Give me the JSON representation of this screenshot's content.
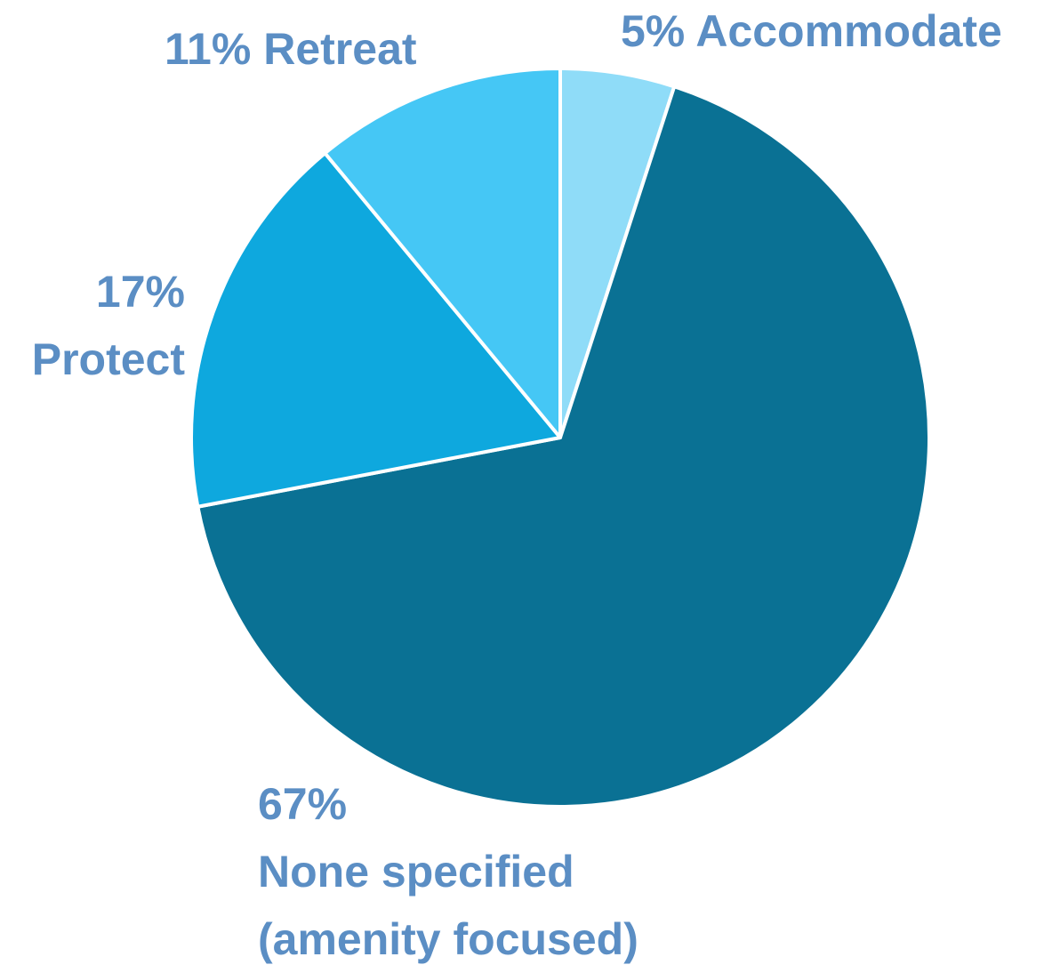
{
  "chart_data": {
    "type": "pie",
    "categories": [
      "Accommodate",
      "None specified (amenity focused)",
      "Protect",
      "Retreat"
    ],
    "values": [
      5,
      67,
      17,
      11
    ],
    "value_labels": [
      "5%",
      "67%",
      "17%",
      "11%"
    ],
    "colors": [
      "#8fdcf8",
      "#0a7194",
      "#0ea8de",
      "#45c7f5"
    ],
    "start_angle": 90,
    "direction": "clockwise"
  }
}
